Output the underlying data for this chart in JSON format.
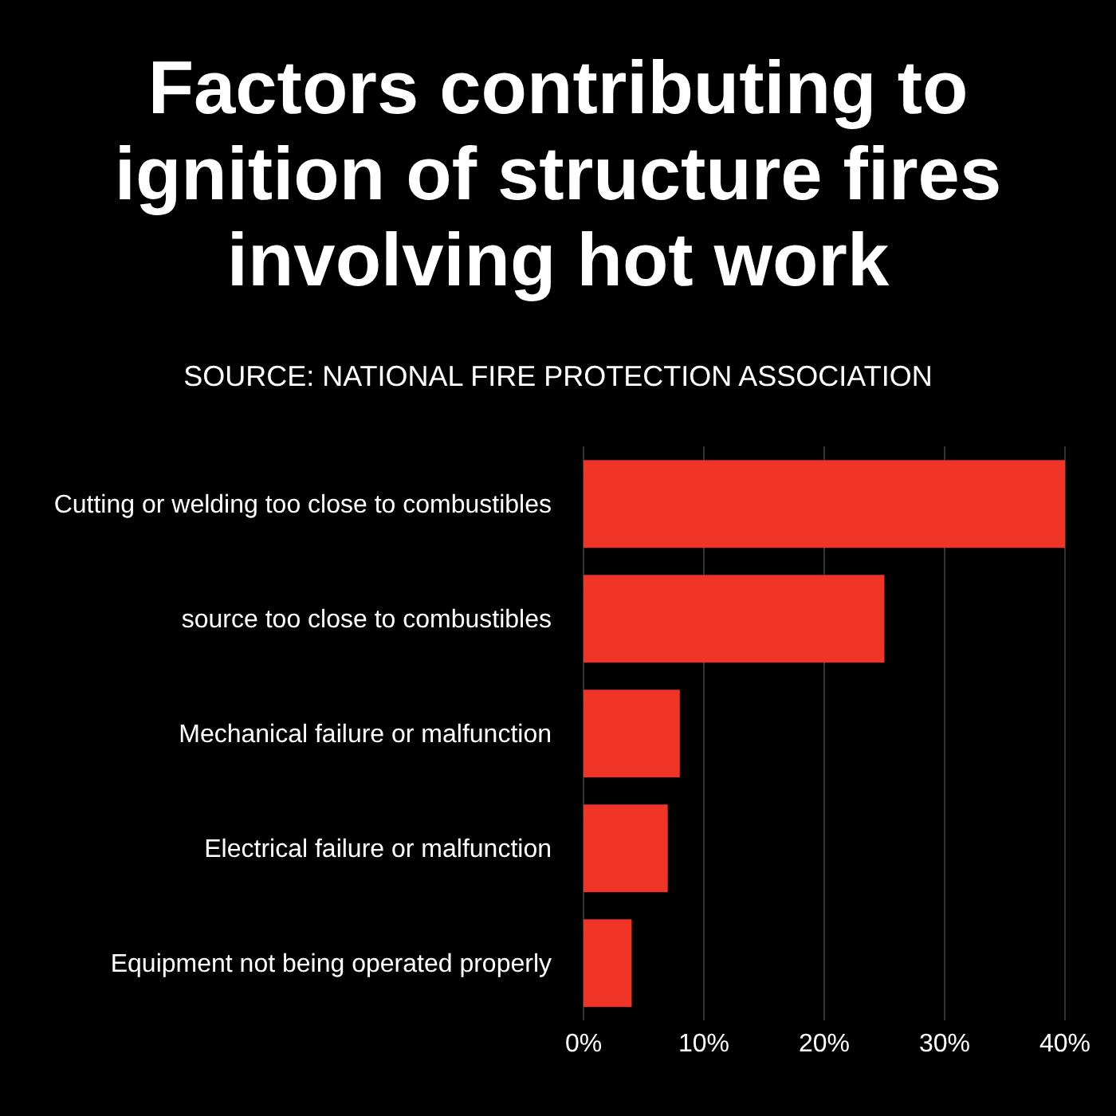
{
  "chart_data": {
    "type": "bar",
    "orientation": "horizontal",
    "title": "Factors contributing to ignition of structure fires involving hot work",
    "subtitle": "SOURCE: NATIONAL FIRE PROTECTION ASSOCIATION",
    "categories": [
      "Cutting or welding too close to combustibles",
      "source too close to combustibles",
      "Mechanical failure or malfunction",
      "Electrical failure or malfunction",
      "Equipment not being operated properly"
    ],
    "values": [
      40,
      25,
      8,
      7,
      4
    ],
    "color": "#f03527",
    "xlim": [
      0,
      40
    ],
    "xticks": [
      {
        "value": 0,
        "label": "0%"
      },
      {
        "value": 10,
        "label": "10%"
      },
      {
        "value": 20,
        "label": "20%"
      },
      {
        "value": 30,
        "label": "30%"
      },
      {
        "value": 40,
        "label": "40%"
      }
    ],
    "grid": "x"
  }
}
